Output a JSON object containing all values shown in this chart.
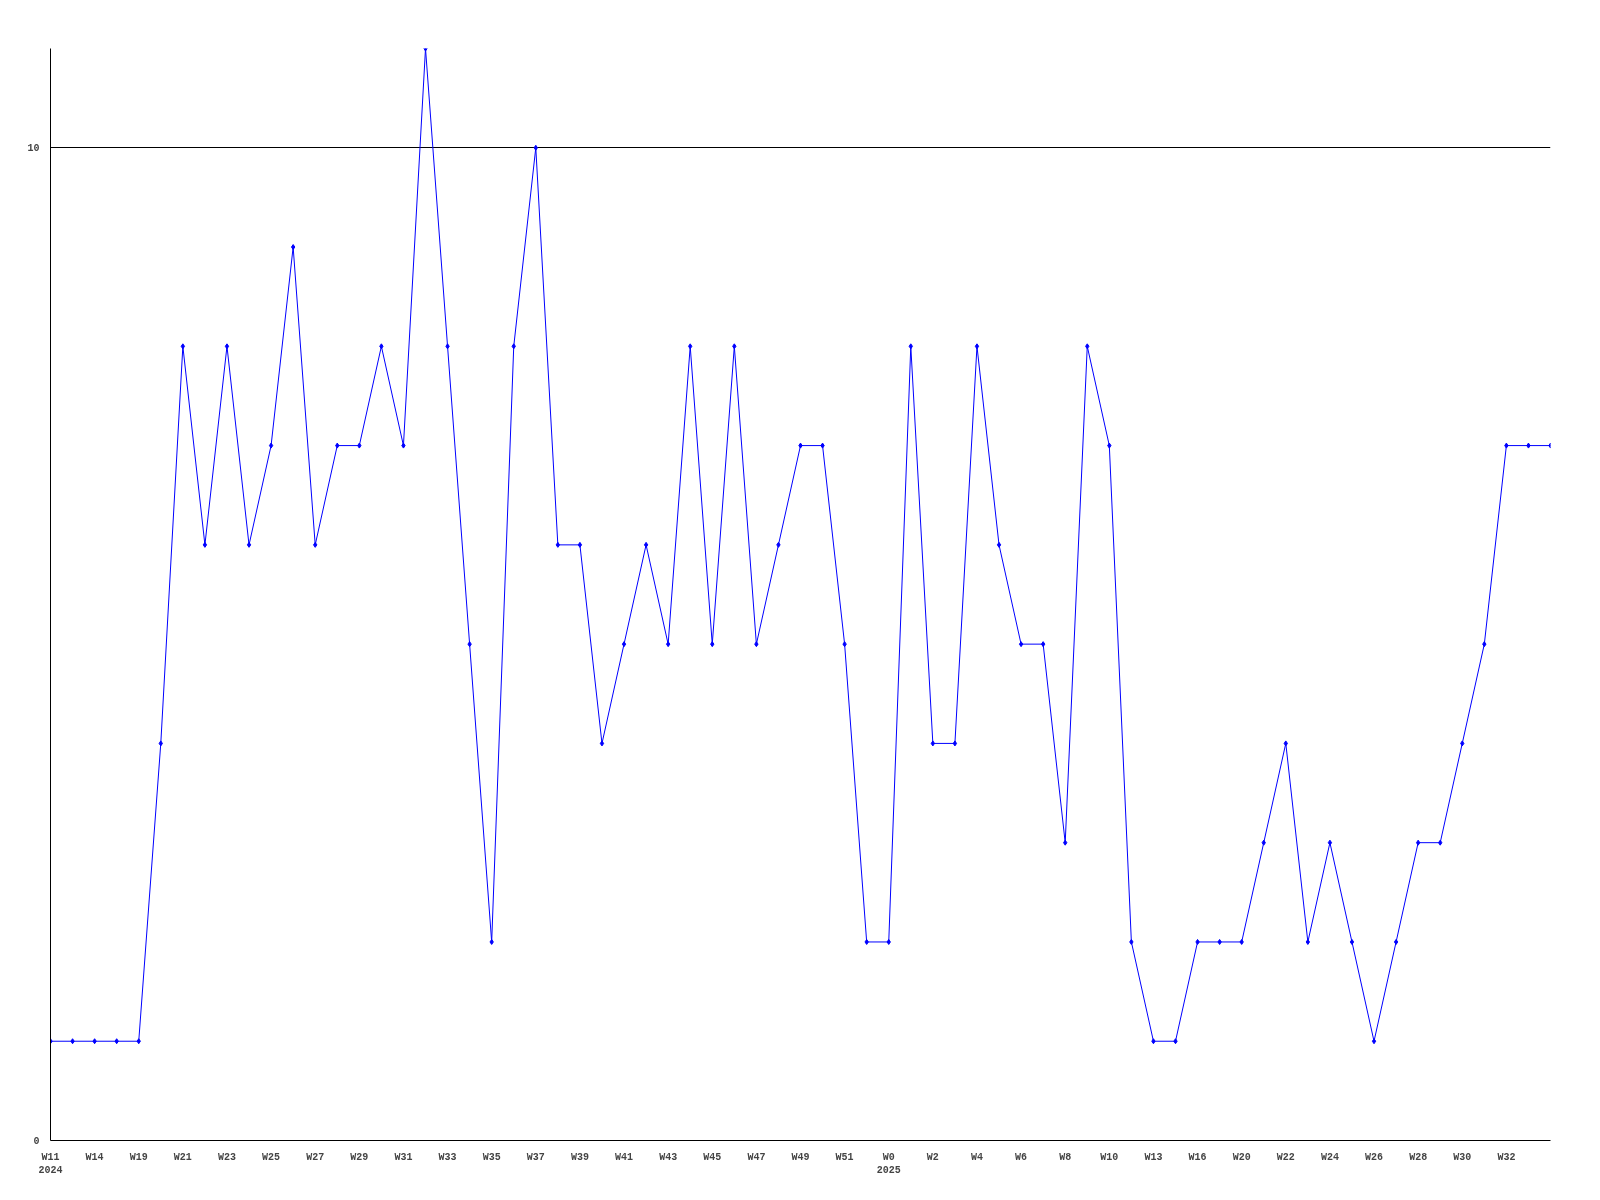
{
  "chart_data": {
    "type": "line",
    "categories": [
      "W11\n2024",
      null,
      "W14",
      null,
      "W19",
      null,
      "W21",
      null,
      "W23",
      null,
      "W25",
      null,
      "W27",
      null,
      "W29",
      null,
      "W31",
      null,
      "W33",
      null,
      "W35",
      null,
      "W37",
      null,
      "W39",
      null,
      "W41",
      null,
      "W43",
      null,
      "W45",
      null,
      "W47",
      null,
      "W49",
      null,
      "W51",
      null,
      "W0\n2025",
      null,
      "W2",
      null,
      "W4",
      null,
      "W6",
      null,
      "W8",
      null,
      "W10",
      null,
      "W13",
      null,
      "W16",
      null,
      "W20",
      null,
      "W22",
      null,
      "W24",
      null,
      "W26",
      null,
      "W28",
      null,
      "W30",
      null,
      "W32",
      null,
      null
    ],
    "series": [
      {
        "color": "#0000ff",
        "values": [
          1,
          1,
          1,
          1,
          1,
          4,
          8,
          6,
          8,
          6,
          7,
          9,
          6,
          7,
          7,
          8,
          7,
          11,
          8,
          5,
          2,
          8,
          10,
          6,
          6,
          4,
          5,
          6,
          5,
          8,
          5,
          8,
          5,
          6,
          7,
          7,
          5,
          2,
          2,
          8,
          4,
          4,
          8,
          6,
          5,
          5,
          3,
          8,
          7,
          2,
          1,
          1,
          2,
          2,
          2,
          3,
          4,
          2,
          3,
          2,
          1,
          2,
          3,
          3,
          4,
          5,
          7,
          7,
          7
        ]
      }
    ],
    "ylim": [
      0,
      11
    ],
    "yticks": [
      0,
      10
    ],
    "grid": "y",
    "marker": "diamond",
    "line_style": "solid"
  }
}
